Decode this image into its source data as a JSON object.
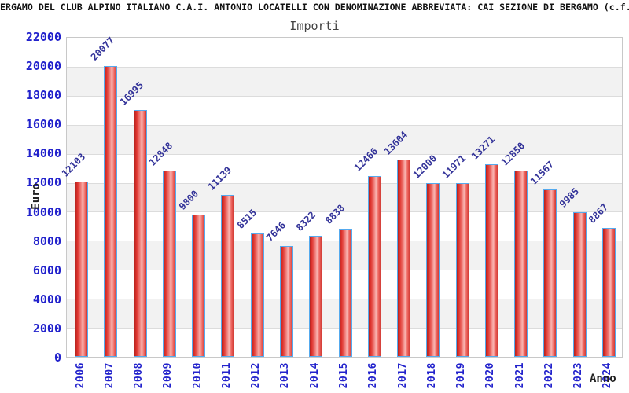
{
  "header": {
    "title_visible": "ERGAMO DEL CLUB ALPINO ITALIANO C.A.I. ANTONIO LOCATELLI CON DENOMINAZIONE ABBREVIATA: CAI SEZIONE DI BERGAMO (c.f."
  },
  "chart_data": {
    "type": "bar",
    "title": "Importi",
    "xlabel": "Anno",
    "ylabel": "Euro",
    "categories": [
      "2006",
      "2007",
      "2008",
      "2009",
      "2010",
      "2011",
      "2012",
      "2013",
      "2014",
      "2015",
      "2016",
      "2017",
      "2018",
      "2019",
      "2020",
      "2021",
      "2022",
      "2023",
      "2024"
    ],
    "values": [
      12103,
      20077,
      16995,
      12848,
      9800,
      11139,
      8515,
      7646,
      8322,
      8838,
      12466,
      13604,
      12000,
      11971,
      13271,
      12850,
      11567,
      9985,
      8867
    ],
    "ylim": [
      0,
      22000
    ],
    "yticks": [
      0,
      2000,
      4000,
      6000,
      8000,
      10000,
      12000,
      14000,
      16000,
      18000,
      20000,
      22000
    ],
    "grid": true,
    "legend": "none",
    "colors": {
      "bar_fill_dark": "#c0302a",
      "bar_fill_light": "#f9b6b3",
      "bar_border": "#55aaee",
      "axis_tick_label": "#2222cc",
      "value_label": "#333399",
      "band_fill": "#f2f2f2",
      "plot_border": "#c8c8c8",
      "title_color": "#444444",
      "header_color": "#111111"
    }
  }
}
